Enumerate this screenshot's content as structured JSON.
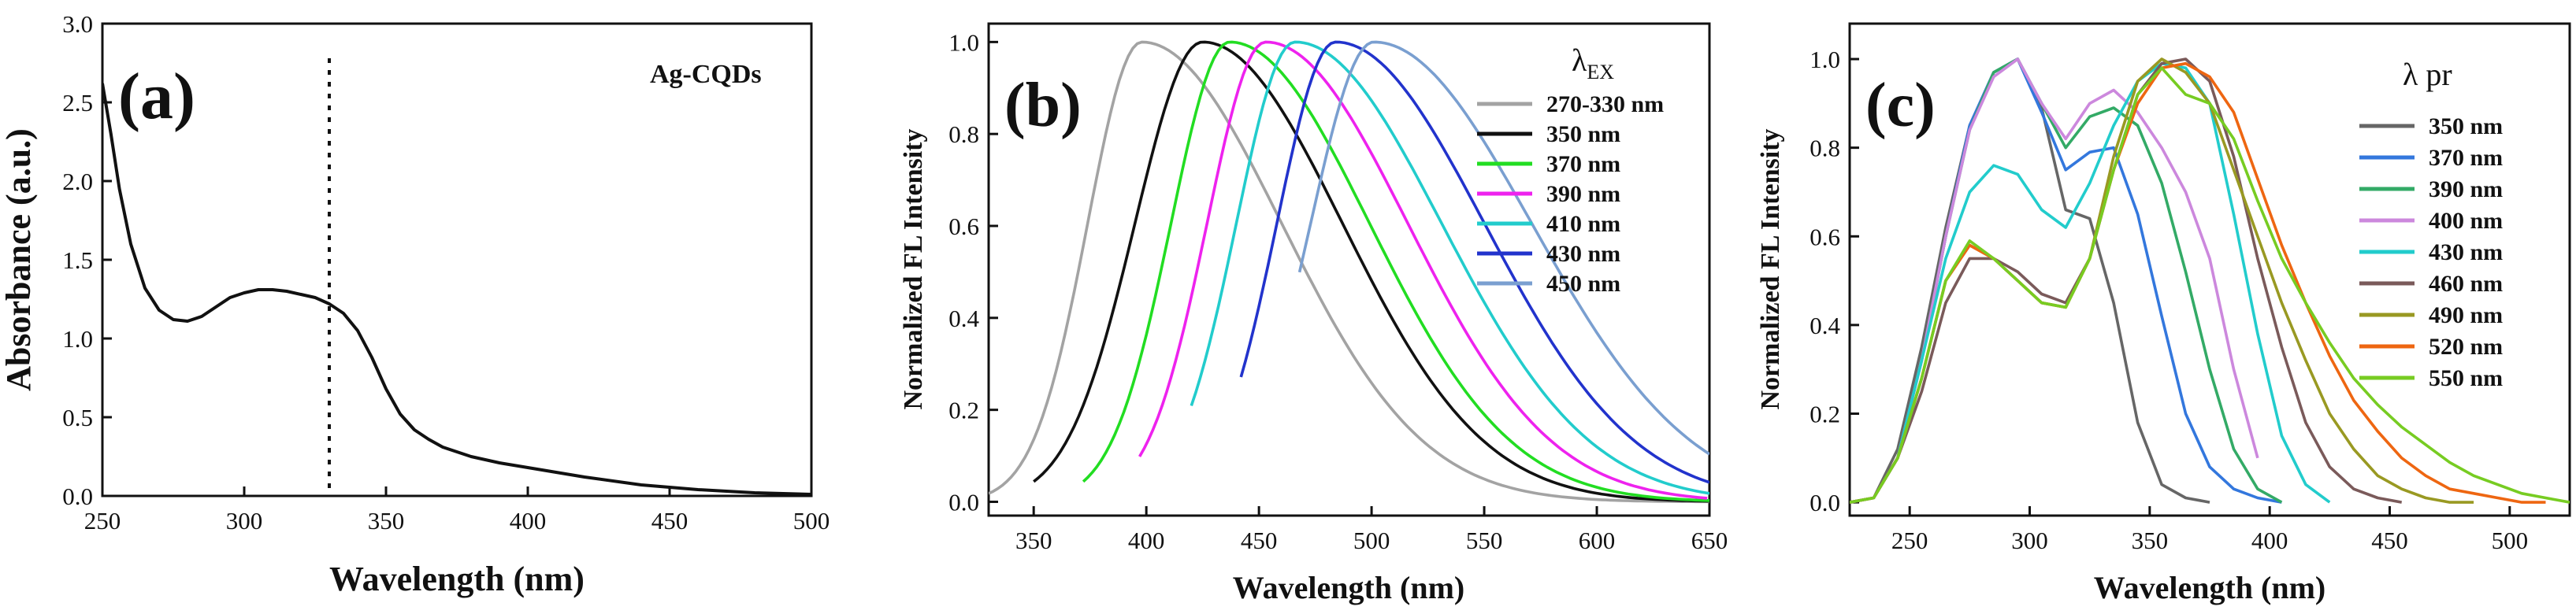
{
  "chart_data": [
    {
      "type": "line",
      "panel_label": "(a)",
      "annotation": "Ag-CQDs",
      "xlabel": "Wavelength (nm)",
      "ylabel": "Absorbance (a.u.)",
      "xlim": [
        250,
        500
      ],
      "ylim": [
        0,
        3.0
      ],
      "xticks": [
        250,
        300,
        350,
        400,
        450,
        500
      ],
      "yticks": [
        0.0,
        0.5,
        1.0,
        1.5,
        2.0,
        2.5,
        3.0
      ],
      "xtick_labels": [
        "250",
        "300",
        "350",
        "400",
        "450",
        "500"
      ],
      "ytick_labels": [
        "0.0",
        "0.5",
        "1.0",
        "1.5",
        "2.0",
        "2.5",
        "3.0"
      ],
      "vline": {
        "x": 330,
        "y_range": [
          0.05,
          2.8
        ],
        "style": "dotted"
      },
      "series": [
        {
          "name": "Ag-CQDs",
          "color": "#111111",
          "x": [
            250,
            253,
            256,
            260,
            265,
            270,
            275,
            280,
            285,
            290,
            295,
            300,
            305,
            310,
            315,
            320,
            325,
            330,
            335,
            340,
            345,
            350,
            355,
            360,
            365,
            370,
            380,
            390,
            400,
            420,
            440,
            460,
            480,
            500
          ],
          "y": [
            2.62,
            2.3,
            1.95,
            1.6,
            1.32,
            1.18,
            1.12,
            1.11,
            1.14,
            1.2,
            1.26,
            1.29,
            1.31,
            1.31,
            1.3,
            1.28,
            1.26,
            1.22,
            1.16,
            1.05,
            0.88,
            0.68,
            0.52,
            0.42,
            0.36,
            0.31,
            0.25,
            0.21,
            0.18,
            0.12,
            0.07,
            0.04,
            0.02,
            0.01
          ]
        }
      ]
    },
    {
      "type": "line",
      "panel_label": "(b)",
      "legend_title": "λEX",
      "legend_position": "top-right",
      "xlabel": "Wavelength (nm)",
      "ylabel": "Normalized FL Intensity",
      "xlim": [
        330,
        650
      ],
      "ylim": [
        -0.03,
        1.04
      ],
      "xticks": [
        350,
        400,
        450,
        500,
        550,
        600,
        650
      ],
      "yticks": [
        0.0,
        0.2,
        0.4,
        0.6,
        0.8,
        1.0
      ],
      "xtick_labels": [
        "350",
        "400",
        "450",
        "500",
        "550",
        "600",
        "650"
      ],
      "ytick_labels": [
        "0.0",
        "0.2",
        "0.4",
        "0.6",
        "0.8",
        "1.0"
      ],
      "series": [
        {
          "name": "270-330 nm",
          "color": "#a3a3a3",
          "x0": 330,
          "x1": 650,
          "peak": 398,
          "sl": 24,
          "sr": 62
        },
        {
          "name": "350 nm",
          "color": "#111111",
          "x0": 350,
          "x1": 650,
          "peak": 425,
          "sl": 30,
          "sr": 62
        },
        {
          "name": "370 nm",
          "color": "#22dd22",
          "x0": 372,
          "x1": 650,
          "peak": 437,
          "sl": 26,
          "sr": 62
        },
        {
          "name": "390 nm",
          "color": "#ee22ee",
          "x0": 397,
          "x1": 650,
          "peak": 453,
          "sl": 26,
          "sr": 63
        },
        {
          "name": "410 nm",
          "color": "#22cccc",
          "x0": 420,
          "x1": 650,
          "peak": 466,
          "sl": 26,
          "sr": 65
        },
        {
          "name": "430 nm",
          "color": "#2233cc",
          "x0": 442,
          "x1": 650,
          "peak": 484,
          "sl": 26,
          "sr": 66
        },
        {
          "name": "450 nm",
          "color": "#7a9fd0",
          "x0": 468,
          "x1": 650,
          "peak": 501,
          "sl": 28,
          "sr": 70
        }
      ]
    },
    {
      "type": "line",
      "panel_label": "(c)",
      "legend_title": "λ pr",
      "legend_position": "top-right",
      "xlabel": "Wavelength (nm)",
      "ylabel": "Normalized FL Intensity",
      "xlim": [
        225,
        525
      ],
      "ylim": [
        -0.03,
        1.08
      ],
      "xticks": [
        250,
        300,
        350,
        400,
        450,
        500
      ],
      "yticks": [
        0.0,
        0.2,
        0.4,
        0.6,
        0.8,
        1.0
      ],
      "xtick_labels": [
        "250",
        "300",
        "350",
        "400",
        "450",
        "500"
      ],
      "ytick_labels": [
        "0.0",
        "0.2",
        "0.4",
        "0.6",
        "0.8",
        "1.0"
      ],
      "series": [
        {
          "name": "350 nm",
          "color": "#666666",
          "x": [
            225,
            235,
            245,
            255,
            265,
            275,
            285,
            295,
            305,
            315,
            325,
            335,
            345,
            355,
            365,
            375
          ],
          "y": [
            0,
            0.01,
            0.12,
            0.35,
            0.62,
            0.85,
            0.97,
            1.0,
            0.89,
            0.66,
            0.64,
            0.45,
            0.18,
            0.04,
            0.01,
            0.0
          ]
        },
        {
          "name": "370 nm",
          "color": "#3377dd",
          "x": [
            225,
            235,
            245,
            255,
            265,
            275,
            285,
            295,
            305,
            315,
            325,
            335,
            345,
            355,
            365,
            375,
            385,
            395,
            405
          ],
          "y": [
            0,
            0.01,
            0.1,
            0.32,
            0.6,
            0.85,
            0.97,
            1.0,
            0.88,
            0.75,
            0.79,
            0.8,
            0.65,
            0.42,
            0.2,
            0.08,
            0.03,
            0.01,
            0.0
          ]
        },
        {
          "name": "390 nm",
          "color": "#33aa66",
          "x": [
            225,
            235,
            245,
            255,
            265,
            275,
            285,
            295,
            305,
            315,
            325,
            335,
            345,
            355,
            365,
            375,
            385,
            395,
            405
          ],
          "y": [
            0,
            0.01,
            0.1,
            0.32,
            0.6,
            0.84,
            0.97,
            1.0,
            0.9,
            0.8,
            0.87,
            0.89,
            0.85,
            0.72,
            0.52,
            0.3,
            0.12,
            0.03,
            0.0
          ]
        },
        {
          "name": "400 nm",
          "color": "#cc88dd",
          "x": [
            225,
            235,
            245,
            255,
            265,
            275,
            285,
            295,
            305,
            315,
            325,
            335,
            345,
            355,
            365,
            375,
            385,
            395
          ],
          "y": [
            0,
            0.01,
            0.1,
            0.32,
            0.6,
            0.84,
            0.96,
            1.0,
            0.9,
            0.82,
            0.9,
            0.93,
            0.88,
            0.8,
            0.7,
            0.55,
            0.3,
            0.1
          ]
        },
        {
          "name": "430 nm",
          "color": "#22cccc",
          "x": [
            225,
            235,
            245,
            255,
            265,
            275,
            285,
            295,
            305,
            315,
            325,
            335,
            345,
            355,
            365,
            375,
            385,
            395,
            405,
            415,
            425
          ],
          "y": [
            0,
            0.01,
            0.1,
            0.32,
            0.55,
            0.7,
            0.76,
            0.74,
            0.66,
            0.62,
            0.72,
            0.85,
            0.95,
            0.99,
            0.98,
            0.9,
            0.65,
            0.38,
            0.15,
            0.04,
            0.0
          ]
        },
        {
          "name": "460 nm",
          "color": "#7a5a5a",
          "x": [
            225,
            235,
            245,
            255,
            265,
            275,
            285,
            295,
            305,
            315,
            325,
            335,
            345,
            355,
            365,
            375,
            385,
            395,
            405,
            415,
            425,
            435,
            445,
            455
          ],
          "y": [
            0,
            0.01,
            0.1,
            0.25,
            0.45,
            0.55,
            0.55,
            0.52,
            0.47,
            0.45,
            0.55,
            0.75,
            0.92,
            0.99,
            1.0,
            0.95,
            0.78,
            0.55,
            0.35,
            0.18,
            0.08,
            0.03,
            0.01,
            0.0
          ]
        },
        {
          "name": "490 nm",
          "color": "#999922",
          "x": [
            225,
            235,
            245,
            255,
            265,
            275,
            285,
            295,
            305,
            315,
            325,
            335,
            345,
            355,
            365,
            375,
            385,
            395,
            405,
            415,
            425,
            435,
            445,
            455,
            465,
            475,
            485
          ],
          "y": [
            0,
            0.01,
            0.1,
            0.28,
            0.5,
            0.58,
            0.55,
            0.5,
            0.45,
            0.44,
            0.55,
            0.78,
            0.95,
            1.0,
            0.97,
            0.9,
            0.75,
            0.6,
            0.45,
            0.32,
            0.2,
            0.12,
            0.06,
            0.03,
            0.01,
            0.0,
            0.0
          ]
        },
        {
          "name": "520 nm",
          "color": "#ee6611",
          "x": [
            225,
            235,
            245,
            255,
            265,
            275,
            285,
            295,
            305,
            315,
            325,
            335,
            345,
            355,
            365,
            375,
            385,
            395,
            405,
            415,
            425,
            435,
            445,
            455,
            465,
            475,
            485,
            495,
            505,
            515
          ],
          "y": [
            0,
            0.01,
            0.1,
            0.28,
            0.5,
            0.58,
            0.55,
            0.5,
            0.45,
            0.44,
            0.55,
            0.75,
            0.9,
            0.98,
            0.99,
            0.96,
            0.88,
            0.73,
            0.58,
            0.45,
            0.33,
            0.23,
            0.16,
            0.1,
            0.06,
            0.03,
            0.02,
            0.01,
            0.0,
            0.0
          ]
        },
        {
          "name": "550 nm",
          "color": "#77cc22",
          "x": [
            225,
            235,
            245,
            255,
            265,
            275,
            285,
            295,
            305,
            315,
            325,
            335,
            345,
            355,
            365,
            375,
            385,
            395,
            405,
            415,
            425,
            435,
            445,
            455,
            465,
            475,
            485,
            495,
            505,
            515,
            525
          ],
          "y": [
            0,
            0.01,
            0.1,
            0.28,
            0.5,
            0.59,
            0.55,
            0.5,
            0.45,
            0.44,
            0.55,
            0.75,
            0.92,
            0.98,
            0.92,
            0.9,
            0.82,
            0.68,
            0.55,
            0.45,
            0.36,
            0.28,
            0.22,
            0.17,
            0.13,
            0.09,
            0.06,
            0.04,
            0.02,
            0.01,
            0.0
          ]
        }
      ]
    }
  ]
}
